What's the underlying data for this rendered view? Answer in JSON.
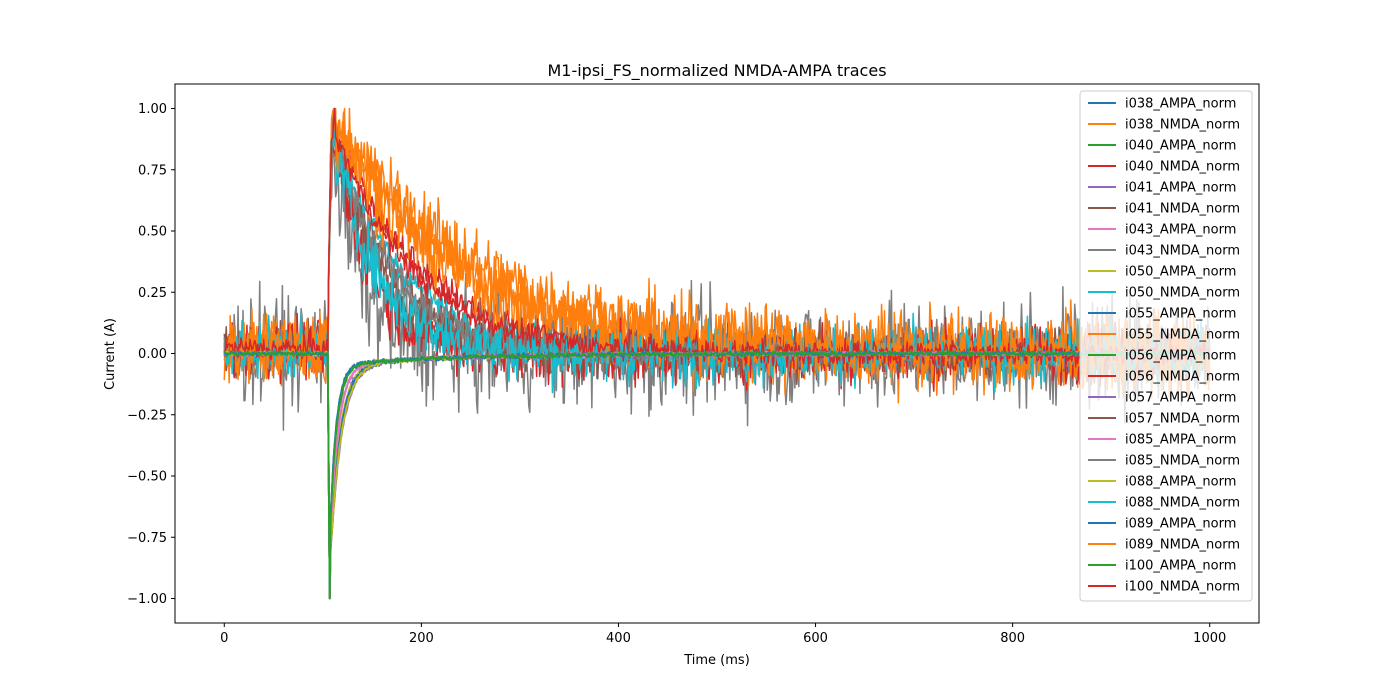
{
  "chart_data": {
    "type": "line",
    "title": "M1-ipsi_FS_normalized NMDA-AMPA traces",
    "xlabel": "Time (ms)",
    "ylabel": "Current (A)",
    "xlim": [
      -50,
      1050
    ],
    "ylim": [
      -1.1,
      1.1
    ],
    "x_ticks": [
      0,
      200,
      400,
      600,
      800,
      1000
    ],
    "x_tick_labels": [
      "0",
      "200",
      "400",
      "600",
      "800",
      "1000"
    ],
    "y_ticks": [
      1.0,
      0.75,
      0.5,
      0.25,
      0.0,
      -0.25,
      -0.5,
      -0.75,
      -1.0
    ],
    "y_tick_labels": [
      "1.00",
      "0.75",
      "0.50",
      "0.25",
      "0.00",
      "−0.25",
      "−0.50",
      "−0.75",
      "−1.00"
    ],
    "grid": false,
    "legend_position": "upper-right",
    "series": [
      {
        "name": "i038_AMPA_norm",
        "color": "#1f77b4"
      },
      {
        "name": "i038_NMDA_norm",
        "color": "#ff7f0e"
      },
      {
        "name": "i040_AMPA_norm",
        "color": "#2ca02c"
      },
      {
        "name": "i040_NMDA_norm",
        "color": "#d62728"
      },
      {
        "name": "i041_AMPA_norm",
        "color": "#9467bd"
      },
      {
        "name": "i041_NMDA_norm",
        "color": "#8c564b"
      },
      {
        "name": "i043_AMPA_norm",
        "color": "#e377c2"
      },
      {
        "name": "i043_NMDA_norm",
        "color": "#7f7f7f"
      },
      {
        "name": "i050_AMPA_norm",
        "color": "#bcbd22"
      },
      {
        "name": "i050_NMDA_norm",
        "color": "#17becf"
      },
      {
        "name": "i055_AMPA_norm",
        "color": "#1f77b4"
      },
      {
        "name": "i055_NMDA_norm",
        "color": "#ff7f0e"
      },
      {
        "name": "i056_AMPA_norm",
        "color": "#2ca02c"
      },
      {
        "name": "i056_NMDA_norm",
        "color": "#d62728"
      },
      {
        "name": "i057_AMPA_norm",
        "color": "#9467bd"
      },
      {
        "name": "i057_NMDA_norm",
        "color": "#8c564b"
      },
      {
        "name": "i085_AMPA_norm",
        "color": "#e377c2"
      },
      {
        "name": "i085_NMDA_norm",
        "color": "#7f7f7f"
      },
      {
        "name": "i088_AMPA_norm",
        "color": "#bcbd22"
      },
      {
        "name": "i088_NMDA_norm",
        "color": "#17becf"
      },
      {
        "name": "i089_AMPA_norm",
        "color": "#1f77b4"
      },
      {
        "name": "i089_NMDA_norm",
        "color": "#ff7f0e"
      },
      {
        "name": "i100_AMPA_norm",
        "color": "#2ca02c"
      },
      {
        "name": "i100_NMDA_norm",
        "color": "#d62728"
      }
    ]
  }
}
